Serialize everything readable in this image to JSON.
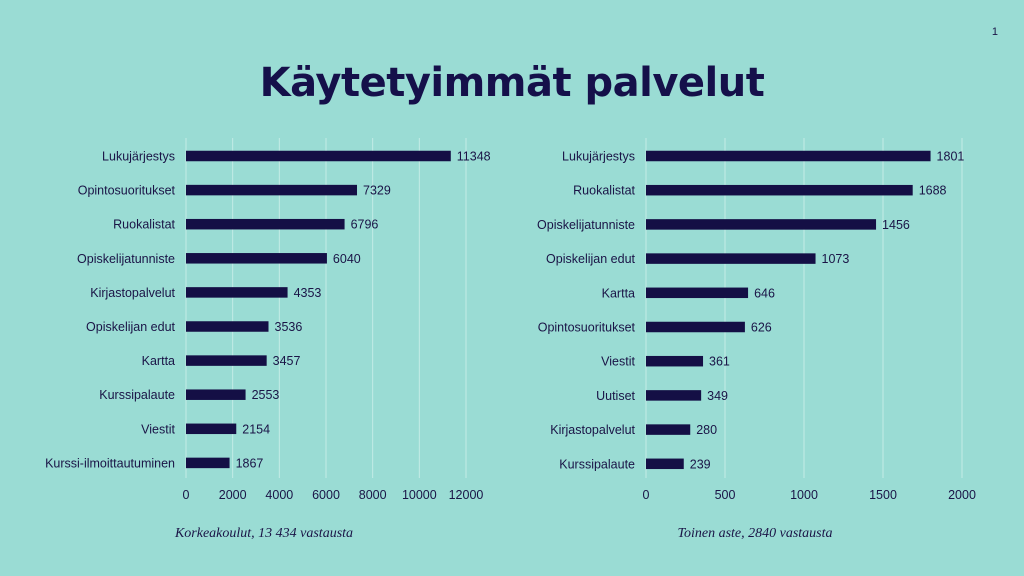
{
  "slide": {
    "page_number": "1",
    "title": "Käytetyimmät palvelut"
  },
  "chart_data": [
    {
      "type": "bar",
      "orientation": "horizontal",
      "title": "",
      "caption": "Korkeakoulut, 13 434 vastausta",
      "categories": [
        "Lukujärjestys",
        "Opintosuoritukset",
        "Ruokalistat",
        "Opiskelijatunniste",
        "Kirjastopalvelut",
        "Opiskelijan edut",
        "Kartta",
        "Kurssipalaute",
        "Viestit",
        "Kurssi-ilmoittautuminen"
      ],
      "values": [
        11348,
        7329,
        6796,
        6040,
        4353,
        3536,
        3457,
        2553,
        2154,
        1867
      ],
      "xlim": [
        0,
        12000
      ],
      "xticks": [
        0,
        2000,
        4000,
        6000,
        8000,
        10000,
        12000
      ],
      "xlabel": "",
      "ylabel": "",
      "grid": true,
      "bar_color": "#140f45",
      "grid_color": "#c4ece6"
    },
    {
      "type": "bar",
      "orientation": "horizontal",
      "title": "",
      "caption": "Toinen aste, 2840 vastausta",
      "categories": [
        "Lukujärjestys",
        "Ruokalistat",
        "Opiskelijatunniste",
        "Opiskelijan edut",
        "Kartta",
        "Opintosuoritukset",
        "Viestit",
        "Uutiset",
        "Kirjastopalvelut",
        "Kurssipalaute"
      ],
      "values": [
        1801,
        1688,
        1456,
        1073,
        646,
        626,
        361,
        349,
        280,
        239
      ],
      "xlim": [
        0,
        2000
      ],
      "xticks": [
        0,
        500,
        1000,
        1500,
        2000
      ],
      "xlabel": "",
      "ylabel": "",
      "grid": true,
      "bar_color": "#140f45",
      "grid_color": "#c4ece6"
    }
  ],
  "colors": {
    "background": "#9adcd4",
    "text": "#1a1446"
  }
}
